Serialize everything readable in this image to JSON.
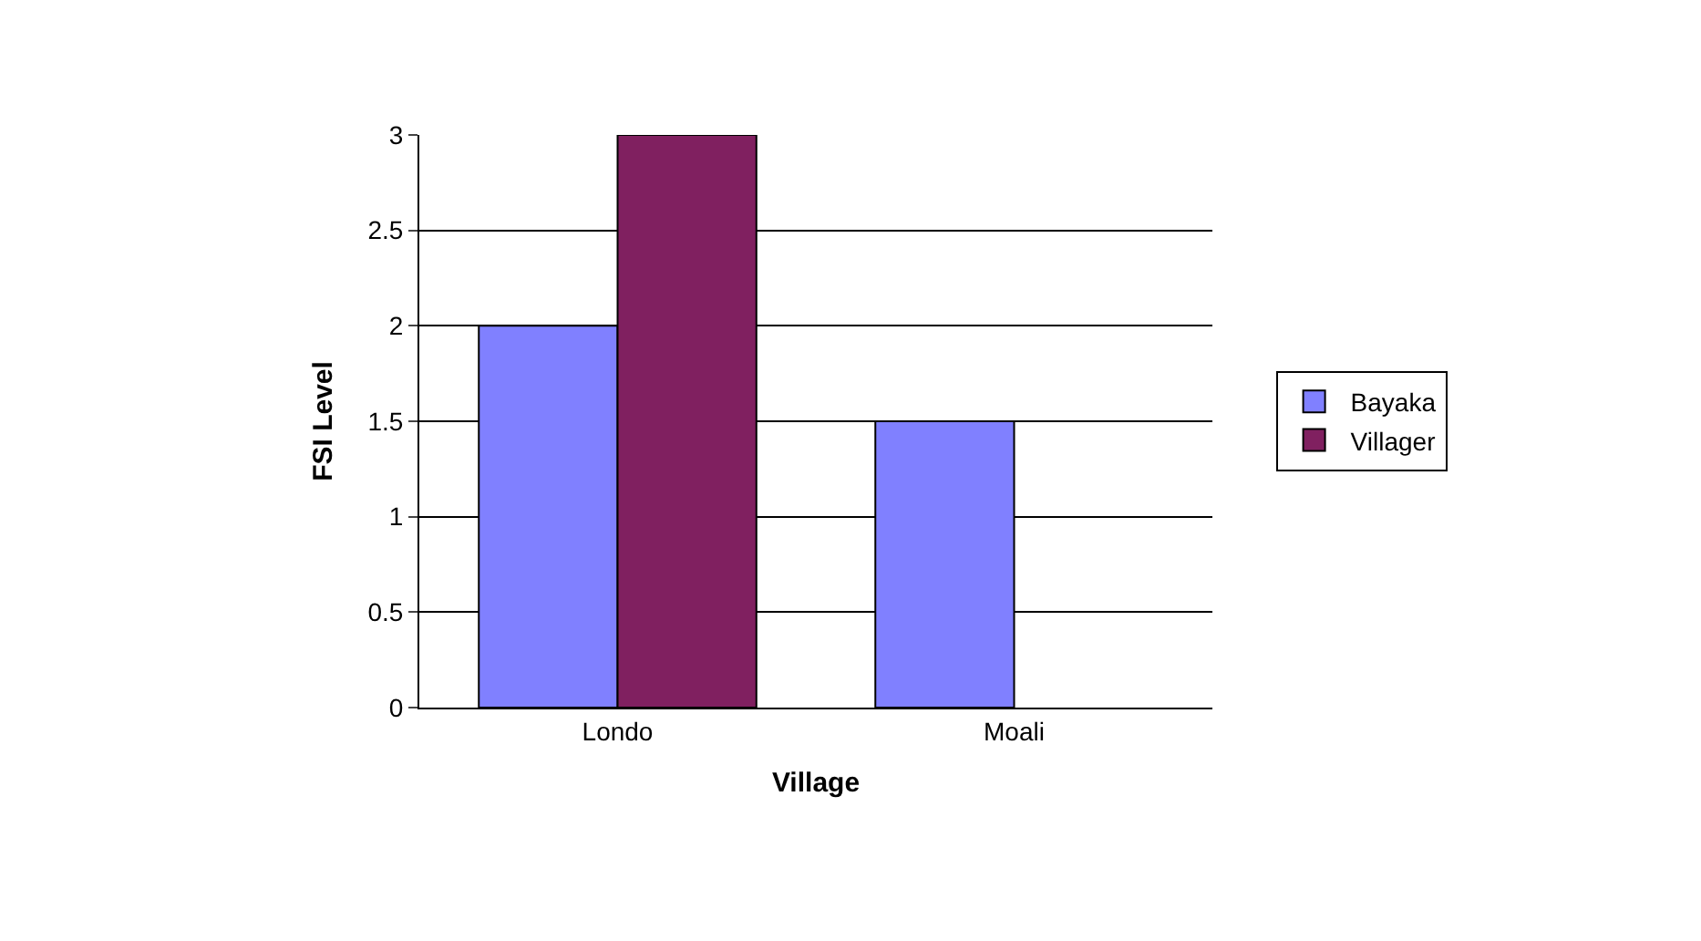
{
  "chart_data": {
    "type": "bar",
    "xlabel": "Village",
    "ylabel": "FSI Level",
    "categories": [
      "Londo",
      "Moali"
    ],
    "series": [
      {
        "name": "Bayaka",
        "color": "#8080ff",
        "values": [
          2,
          1.5
        ]
      },
      {
        "name": "Villager",
        "color": "#802060",
        "values": [
          3,
          null
        ]
      }
    ],
    "ylim": [
      0,
      3
    ],
    "yticks": [
      0,
      0.5,
      1,
      1.5,
      2,
      2.5,
      3
    ],
    "grid": "y",
    "legend": "right"
  }
}
